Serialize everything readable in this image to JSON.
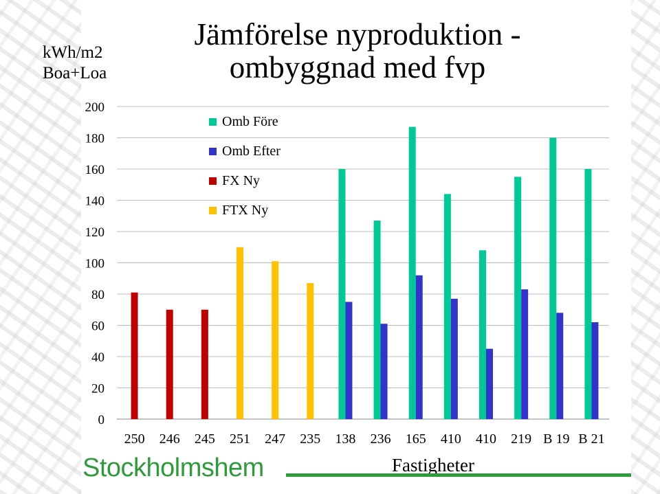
{
  "chart_data": {
    "type": "bar",
    "title": "Jämförelse nyproduktion - ombyggnad med fvp",
    "ylabel": "kWh/m2 Boa+Loa",
    "xlabel": "Fastigheter",
    "ylim": [
      0,
      200
    ],
    "yticks": [
      0,
      20,
      40,
      60,
      80,
      100,
      120,
      140,
      160,
      180,
      200
    ],
    "grid": true,
    "legend_position": "top-left",
    "categories": [
      "250",
      "246",
      "245",
      "251",
      "247",
      "235",
      "138",
      "236",
      "165",
      "410",
      "410",
      "219",
      "B 19",
      "B 21"
    ],
    "series": [
      {
        "name": "Omb Före",
        "color": "#00c896",
        "values": [
          null,
          null,
          null,
          null,
          null,
          null,
          160,
          127,
          187,
          144,
          108,
          155,
          180,
          160
        ]
      },
      {
        "name": "Omb Efter",
        "color": "#3333cc",
        "values": [
          null,
          null,
          null,
          null,
          null,
          null,
          75,
          61,
          92,
          77,
          45,
          83,
          68,
          62
        ]
      },
      {
        "name": "FX Ny",
        "color": "#c00000",
        "values": [
          81,
          70,
          70,
          null,
          null,
          null,
          null,
          null,
          null,
          null,
          null,
          null,
          null,
          null
        ]
      },
      {
        "name": "FTX Ny",
        "color": "#ffc000",
        "values": [
          null,
          null,
          null,
          110,
          101,
          87,
          null,
          null,
          null,
          null,
          null,
          null,
          null,
          null
        ]
      }
    ]
  },
  "brand": {
    "name": "Stockholmshem",
    "color": "#2e9b3a"
  }
}
